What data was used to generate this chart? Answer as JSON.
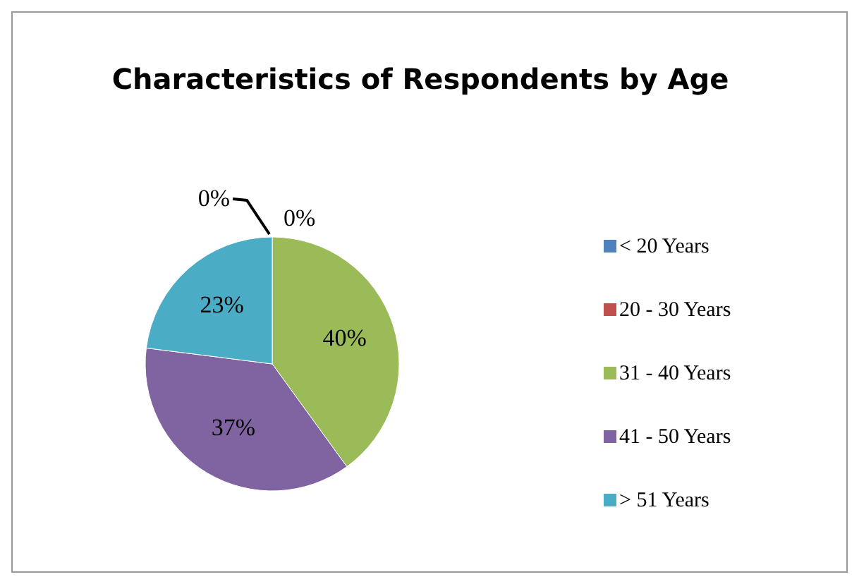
{
  "chart_data": {
    "type": "pie",
    "title": "Characteristics of Respondents by Age",
    "categories": [
      "< 20 Years",
      "20 - 30 Years",
      "31 - 40 Years",
      "41 - 50 Years",
      "> 51 Years"
    ],
    "values": [
      0,
      0,
      40,
      37,
      23
    ],
    "colors": [
      "#4f81bd",
      "#c0504d",
      "#9bbb59",
      "#8064a2",
      "#4bacc6"
    ],
    "value_labels": [
      "0%",
      "0%",
      "40%",
      "37%",
      "23%"
    ],
    "legend": "right"
  }
}
